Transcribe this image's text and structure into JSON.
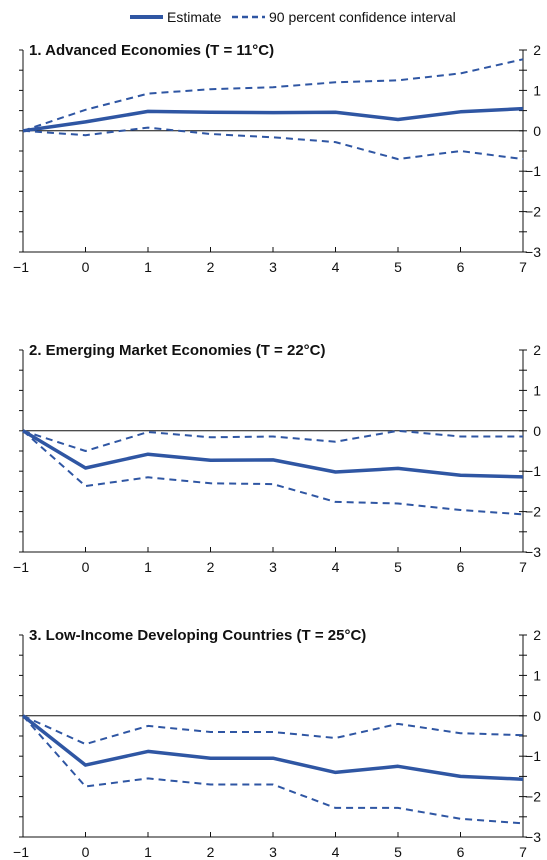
{
  "chart_data": [
    {
      "type": "line",
      "title": "1. Advanced Economies (T = 11°C)",
      "x": [
        -1,
        0,
        1,
        2,
        3,
        4,
        5,
        6,
        7
      ],
      "ylim": [
        -3,
        2
      ],
      "yticks": [
        2,
        1,
        0,
        -1,
        -2,
        -3
      ],
      "legend": {
        "position": "top",
        "entries": [
          "Estimate",
          "90 percent confidence interval"
        ]
      },
      "series": [
        {
          "name": "Estimate",
          "style": "solid",
          "values": [
            0,
            0.22,
            0.48,
            0.46,
            0.45,
            0.46,
            0.28,
            0.47,
            0.55
          ]
        },
        {
          "name": "90 percent confidence interval",
          "style": "dashed",
          "values": [
            0,
            0.52,
            0.92,
            1.03,
            1.08,
            1.2,
            1.25,
            1.42,
            1.77
          ]
        },
        {
          "name": "90 percent confidence interval",
          "style": "dashed",
          "values": [
            0,
            -0.11,
            0.08,
            -0.08,
            -0.16,
            -0.28,
            -0.7,
            -0.5,
            -0.7
          ]
        }
      ]
    },
    {
      "type": "line",
      "title": "2. Emerging Market Economies (T = 22°C)",
      "x": [
        -1,
        0,
        1,
        2,
        3,
        4,
        5,
        6,
        7
      ],
      "ylim": [
        -3,
        2
      ],
      "yticks": [
        2,
        1,
        0,
        -1,
        -2,
        -3
      ],
      "series": [
        {
          "name": "Estimate",
          "style": "solid",
          "values": [
            0,
            -0.92,
            -0.58,
            -0.73,
            -0.72,
            -1.02,
            -0.93,
            -1.1,
            -1.14
          ]
        },
        {
          "name": "90 percent confidence interval",
          "style": "dashed",
          "values": [
            0,
            -0.5,
            -0.03,
            -0.16,
            -0.14,
            -0.27,
            0.0,
            -0.14,
            -0.14
          ]
        },
        {
          "name": "90 percent confidence interval",
          "style": "dashed",
          "values": [
            0,
            -1.37,
            -1.15,
            -1.3,
            -1.32,
            -1.76,
            -1.8,
            -1.96,
            -2.07
          ]
        }
      ]
    },
    {
      "type": "line",
      "title": "3. Low-Income Developing Countries (T = 25°C)",
      "x": [
        -1,
        0,
        1,
        2,
        3,
        4,
        5,
        6,
        7
      ],
      "ylim": [
        -3,
        2
      ],
      "yticks": [
        2,
        1,
        0,
        -1,
        -2,
        -3
      ],
      "series": [
        {
          "name": "Estimate",
          "style": "solid",
          "values": [
            0,
            -1.22,
            -0.88,
            -1.05,
            -1.05,
            -1.4,
            -1.25,
            -1.5,
            -1.57
          ]
        },
        {
          "name": "90 percent confidence interval",
          "style": "dashed",
          "values": [
            0,
            -0.7,
            -0.25,
            -0.4,
            -0.4,
            -0.55,
            -0.2,
            -0.43,
            -0.48
          ]
        },
        {
          "name": "90 percent confidence interval",
          "style": "dashed",
          "values": [
            0,
            -1.75,
            -1.55,
            -1.7,
            -1.7,
            -2.28,
            -2.28,
            -2.55,
            -2.66
          ]
        }
      ]
    }
  ],
  "style": {
    "line_color": "#2f56a3",
    "axis_color": "#111111",
    "zero_line_color": "#111111"
  }
}
